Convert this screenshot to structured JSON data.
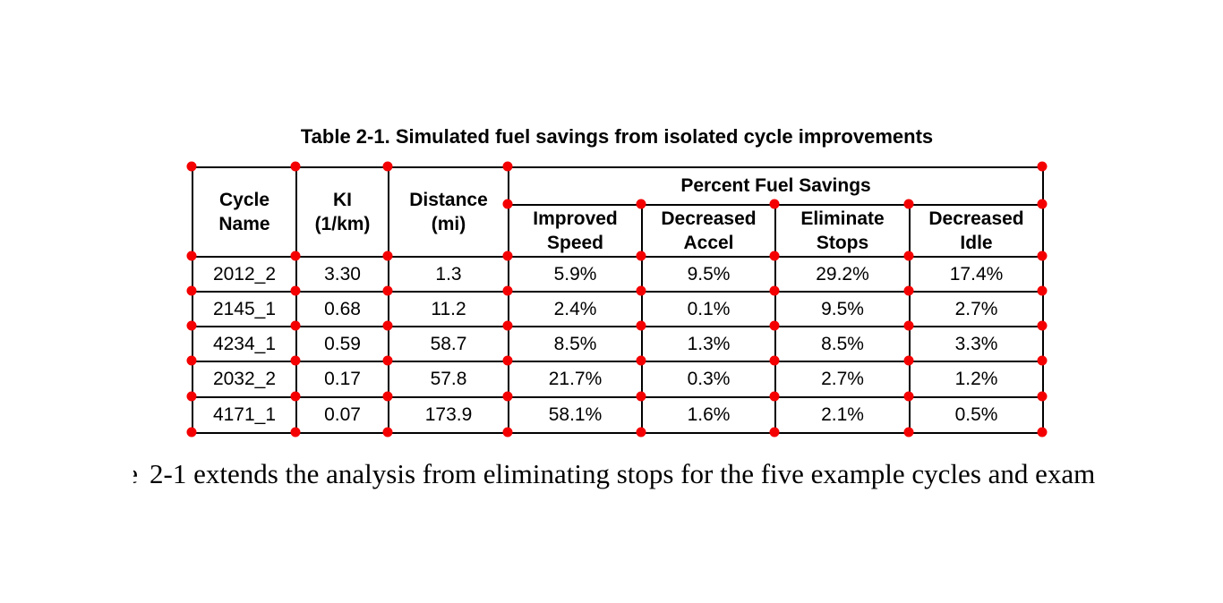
{
  "title": "Table 2-1. Simulated fuel savings from isolated cycle improvements",
  "table": {
    "columns": {
      "cycle_name": "Cycle\nName",
      "ki": "KI\n(1/km)",
      "distance": "Distance\n(mi)",
      "group": "Percent Fuel Savings",
      "sub": [
        "Improved\nSpeed",
        "Decreased\nAccel",
        "Eliminate\nStops",
        "Decreased\nIdle"
      ]
    },
    "rows": [
      {
        "cycle": "2012_2",
        "ki": "3.30",
        "distance": "1.3",
        "improved_speed": "5.9%",
        "decreased_accel": "9.5%",
        "eliminate_stops": "29.2%",
        "decreased_idle": "17.4%"
      },
      {
        "cycle": "2145_1",
        "ki": "0.68",
        "distance": "11.2",
        "improved_speed": "2.4%",
        "decreased_accel": "0.1%",
        "eliminate_stops": "9.5%",
        "decreased_idle": "2.7%"
      },
      {
        "cycle": "4234_1",
        "ki": "0.59",
        "distance": "58.7",
        "improved_speed": "8.5%",
        "decreased_accel": "1.3%",
        "eliminate_stops": "8.5%",
        "decreased_idle": "3.3%"
      },
      {
        "cycle": "2032_2",
        "ki": "0.17",
        "distance": "57.8",
        "improved_speed": "21.7%",
        "decreased_accel": "0.3%",
        "eliminate_stops": "2.7%",
        "decreased_idle": "1.2%"
      },
      {
        "cycle": "4171_1",
        "ki": "0.07",
        "distance": "173.9",
        "improved_speed": "58.1%",
        "decreased_accel": "1.6%",
        "eliminate_stops": "2.1%",
        "decreased_idle": "0.5%"
      }
    ]
  },
  "body_text": {
    "clipped_char": "e",
    "text": "2-1 extends the analysis from eliminating stops for the five example cycles and exam"
  },
  "annotation": {
    "marker_color": "#f40000"
  }
}
